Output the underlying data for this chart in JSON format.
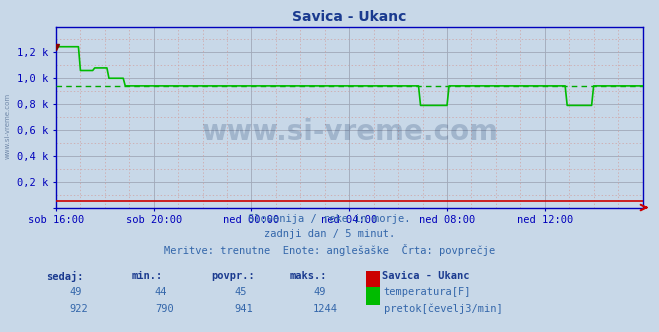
{
  "title": "Savica - Ukanc",
  "title_color": "#1a3a8f",
  "bg_color": "#c8d8e8",
  "plot_bg_color": "#c8d8e8",
  "axis_color": "#0000bb",
  "tick_color": "#3366aa",
  "ylabel_color": "#3366aa",
  "xlabel_color": "#3366aa",
  "x_labels": [
    "sob 16:00",
    "sob 20:00",
    "ned 00:00",
    "ned 04:00",
    "ned 08:00",
    "ned 12:00"
  ],
  "x_ticks_norm": [
    0.0,
    0.1667,
    0.3333,
    0.5,
    0.6667,
    0.8333
  ],
  "ylim": [
    0,
    1400
  ],
  "yticks": [
    0,
    200,
    400,
    600,
    800,
    1000,
    1200
  ],
  "ytick_labels": [
    "",
    "0,2 k",
    "0,4 k",
    "0,6 k",
    "0,8 k",
    "1,0 k",
    "1,2 k"
  ],
  "watermark": "www.si-vreme.com",
  "watermark_color": "#1a3a6a",
  "watermark_alpha": 0.22,
  "footer_line1": "Slovenija / reke in morje.",
  "footer_line2": "zadnji dan / 5 minut.",
  "footer_line3": "Meritve: trenutne  Enote: anglešaške  Črta: povprečje",
  "footer_color": "#3366aa",
  "table_headers": [
    "sedaj:",
    "min.:",
    "povpr.:",
    "maks.:"
  ],
  "table_row1_vals": [
    "49",
    "44",
    "45",
    "49"
  ],
  "table_row2_vals": [
    "922",
    "790",
    "941",
    "1244"
  ],
  "station_label": "Savica - Ukanc",
  "legend_temp": "temperatura[F]",
  "legend_flow": "pretok[čevelj3/min]",
  "temp_color": "#cc0000",
  "flow_color": "#00bb00",
  "avg_line_color": "#00aa00",
  "avg_line_value": 941,
  "n_points": 289
}
